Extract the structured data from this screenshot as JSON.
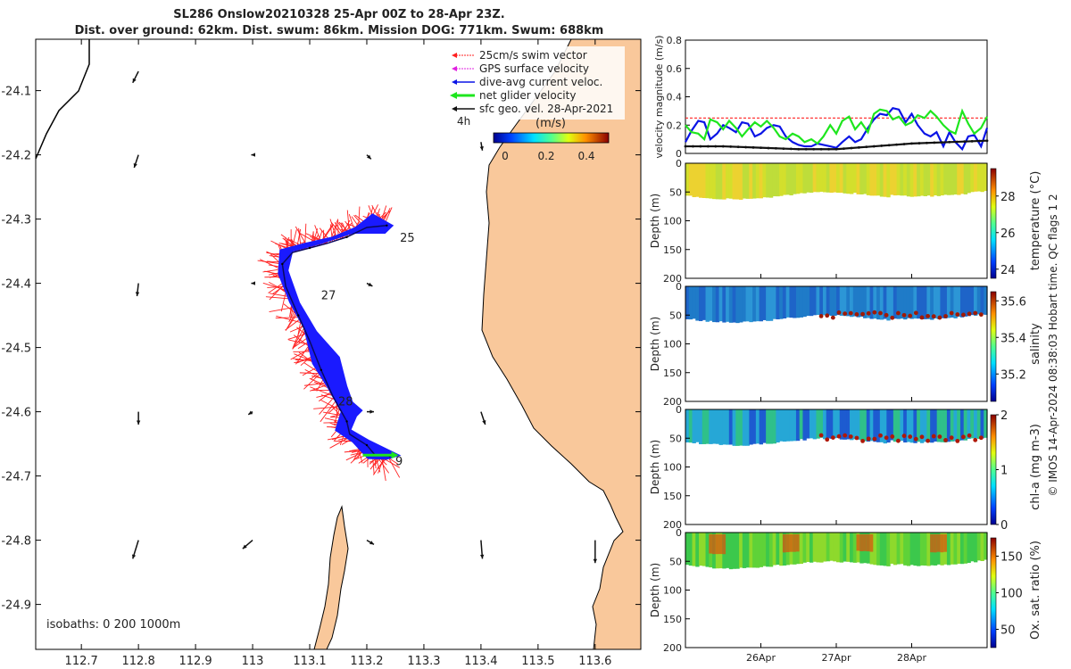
{
  "title_line1": "SL286 Onslow20210328 25-Apr 00Z to 28-Apr 23Z.",
  "title_line2": "Dist. over ground: 62km. Dist. swum: 86km. Mission DOG: 771km. Swum: 688km",
  "footer_note": "© IMOS 14-Apr-2024 08:38:03 Hobart time. QC flags 1  2",
  "colors": {
    "land": "#f9c89b",
    "swim_vector": "#ff2020",
    "gps_velocity": "#e020e0",
    "dive_avg": "#0a14e6",
    "net_velocity": "#1ee61e",
    "sfc_geo": "#111111",
    "track": "#1a1aff"
  },
  "chart_data": [
    {
      "id": "map",
      "type": "scatter",
      "xlim": [
        112.62,
        113.68
      ],
      "ylim": [
        -24.97,
        -24.02
      ],
      "x_ticks": [
        112.7,
        112.8,
        112.9,
        113,
        113.1,
        113.2,
        113.3,
        113.4,
        113.5,
        113.6
      ],
      "x_tick_labels": [
        "112.7",
        "112.8",
        "112.9",
        "113",
        "113.1",
        "113.2",
        "113.3",
        "113.4",
        "113.5",
        "113.6"
      ],
      "y_ticks": [
        -24.1,
        -24.2,
        -24.3,
        -24.4,
        -24.5,
        -24.6,
        -24.7,
        -24.8,
        -24.9
      ],
      "y_tick_labels": [
        "-24.1",
        "-24.2",
        "-24.3",
        "-24.4",
        "-24.5",
        "-24.6",
        "-24.7",
        "-24.8",
        "-24.9"
      ],
      "legend": {
        "placement": "top-right",
        "entries": [
          "25cm/s swim vector",
          "GPS surface velocity",
          "dive-avg current veloc.",
          "net glider velocity",
          "sfc geo. vel. 28-Apr-2021"
        ],
        "time_step": "4h",
        "colorbar_title": "(m/s)",
        "colorbar_range": [
          0,
          0.5
        ],
        "colorbar_ticks": [
          "0",
          "0.2",
          "0.4"
        ]
      },
      "isobaths_label": "isobaths: 0   200  1000m",
      "day_labels": [
        {
          "text": "25",
          "lon": 113.258,
          "lat": -24.335
        },
        {
          "text": "27",
          "lon": 113.12,
          "lat": -24.425
        },
        {
          "text": "28",
          "lon": 113.15,
          "lat": -24.59
        },
        {
          "text": "9",
          "lon": 113.25,
          "lat": -24.683
        }
      ],
      "glider_track": [
        [
          113.235,
          -24.31
        ],
        [
          113.2,
          -24.313
        ],
        [
          113.165,
          -24.328
        ],
        [
          113.13,
          -24.338
        ],
        [
          113.1,
          -24.345
        ],
        [
          113.07,
          -24.352
        ],
        [
          113.052,
          -24.37
        ],
        [
          113.058,
          -24.405
        ],
        [
          113.08,
          -24.45
        ],
        [
          113.1,
          -24.49
        ],
        [
          113.12,
          -24.535
        ],
        [
          113.14,
          -24.575
        ],
        [
          113.165,
          -24.615
        ],
        [
          113.17,
          -24.635
        ],
        [
          113.2,
          -24.652
        ],
        [
          113.215,
          -24.668
        ],
        [
          113.24,
          -24.669
        ]
      ],
      "current_band": {
        "outer": [
          [
            113.21,
            -24.292
          ],
          [
            113.246,
            -24.31
          ],
          [
            113.232,
            -24.322
          ],
          [
            113.175,
            -24.322
          ],
          [
            113.12,
            -24.338
          ],
          [
            113.07,
            -24.35
          ],
          [
            113.062,
            -24.38
          ],
          [
            113.082,
            -24.43
          ],
          [
            113.112,
            -24.475
          ],
          [
            113.152,
            -24.515
          ],
          [
            113.165,
            -24.56
          ],
          [
            113.175,
            -24.585
          ],
          [
            113.192,
            -24.598
          ],
          [
            113.182,
            -24.607
          ],
          [
            113.172,
            -24.628
          ],
          [
            113.205,
            -24.645
          ],
          [
            113.258,
            -24.668
          ],
          [
            113.235,
            -24.674
          ],
          [
            113.202,
            -24.673
          ]
        ],
        "inner": [
          [
            113.202,
            -24.673
          ],
          [
            113.175,
            -24.647
          ],
          [
            113.145,
            -24.629
          ],
          [
            113.155,
            -24.6
          ],
          [
            113.13,
            -24.56
          ],
          [
            113.105,
            -24.525
          ],
          [
            113.09,
            -24.47
          ],
          [
            113.065,
            -24.43
          ],
          [
            113.045,
            -24.385
          ],
          [
            113.048,
            -24.348
          ],
          [
            113.09,
            -24.338
          ],
          [
            113.14,
            -24.328
          ],
          [
            113.18,
            -24.313
          ]
        ]
      },
      "sfc_geo_arrows": [
        {
          "lon": 112.8,
          "lat": -24.07,
          "u": -0.04,
          "v": -0.08
        },
        {
          "lon": 112.8,
          "lat": -24.2,
          "u": -0.03,
          "v": -0.09
        },
        {
          "lon": 112.8,
          "lat": -24.4,
          "u": -0.01,
          "v": -0.09
        },
        {
          "lon": 112.8,
          "lat": -24.6,
          "u": 0.0,
          "v": -0.09
        },
        {
          "lon": 112.8,
          "lat": -24.8,
          "u": -0.04,
          "v": -0.13
        },
        {
          "lon": 113.0,
          "lat": -24.2,
          "u": -0.01,
          "v": 0.0
        },
        {
          "lon": 113.0,
          "lat": -24.4,
          "u": -0.01,
          "v": 0.0
        },
        {
          "lon": 113.0,
          "lat": -24.6,
          "u": -0.03,
          "v": -0.02
        },
        {
          "lon": 113.0,
          "lat": -24.8,
          "u": -0.07,
          "v": -0.06
        },
        {
          "lon": 113.2,
          "lat": -24.2,
          "u": 0.03,
          "v": -0.03
        },
        {
          "lon": 113.2,
          "lat": -24.4,
          "u": 0.04,
          "v": -0.02
        },
        {
          "lon": 113.2,
          "lat": -24.6,
          "u": 0.05,
          "v": 0.0
        },
        {
          "lon": 113.2,
          "lat": -24.8,
          "u": 0.05,
          "v": -0.03
        },
        {
          "lon": 113.4,
          "lat": -24.18,
          "u": 0.01,
          "v": -0.06
        },
        {
          "lon": 113.4,
          "lat": -24.6,
          "u": 0.03,
          "v": -0.09
        },
        {
          "lon": 113.4,
          "lat": -24.8,
          "u": 0.01,
          "v": -0.13
        },
        {
          "lon": 113.6,
          "lat": -24.8,
          "u": 0.0,
          "v": -0.16
        }
      ]
    },
    {
      "id": "velocity",
      "type": "line",
      "ylabel": "velocity magnitude (m/s)",
      "xlim": [
        25.0,
        29.0
      ],
      "ylim": [
        0,
        0.8
      ],
      "y_ticks": [
        0,
        0.2,
        0.4,
        0.6,
        0.8
      ],
      "y_tick_labels": [
        "0",
        "0.2",
        "0.4",
        "0.6",
        "0.8"
      ],
      "series": [
        {
          "name": "swim vector",
          "color": "#ff2020",
          "dashed": true,
          "x": [
            25.0,
            29.0
          ],
          "y": [
            0.25,
            0.25
          ]
        },
        {
          "name": "dive-avg current",
          "color": "#0a14e6",
          "x": [
            25.0,
            25.08,
            25.17,
            25.25,
            25.33,
            25.42,
            25.5,
            25.58,
            25.67,
            25.75,
            25.83,
            25.92,
            26.0,
            26.08,
            26.17,
            26.25,
            26.33,
            26.42,
            26.5,
            26.58,
            26.67,
            26.75,
            26.83,
            26.92,
            27.0,
            27.08,
            27.17,
            27.25,
            27.33,
            27.42,
            27.5,
            27.58,
            27.67,
            27.75,
            27.83,
            27.92,
            28.0,
            28.08,
            28.17,
            28.25,
            28.33,
            28.42,
            28.5,
            28.58,
            28.67,
            28.75,
            28.83,
            28.92,
            29.0
          ],
          "y": [
            0.08,
            0.16,
            0.23,
            0.22,
            0.1,
            0.14,
            0.2,
            0.18,
            0.15,
            0.22,
            0.21,
            0.12,
            0.14,
            0.18,
            0.2,
            0.19,
            0.12,
            0.08,
            0.06,
            0.05,
            0.05,
            0.07,
            0.06,
            0.05,
            0.04,
            0.08,
            0.12,
            0.08,
            0.1,
            0.18,
            0.24,
            0.28,
            0.27,
            0.32,
            0.31,
            0.22,
            0.28,
            0.2,
            0.14,
            0.12,
            0.15,
            0.05,
            0.15,
            0.08,
            0.03,
            0.12,
            0.13,
            0.05,
            0.18
          ]
        },
        {
          "name": "net glider velocity",
          "color": "#1ee61e",
          "x": [
            25.0,
            25.08,
            25.17,
            25.25,
            25.33,
            25.42,
            25.5,
            25.58,
            25.67,
            25.75,
            25.83,
            25.92,
            26.0,
            26.08,
            26.17,
            26.25,
            26.33,
            26.42,
            26.5,
            26.58,
            26.67,
            26.75,
            26.83,
            26.92,
            27.0,
            27.08,
            27.17,
            27.25,
            27.33,
            27.42,
            27.5,
            27.58,
            27.67,
            27.75,
            27.83,
            27.92,
            28.0,
            28.08,
            28.17,
            28.25,
            28.33,
            28.42,
            28.5,
            28.58,
            28.67,
            28.75,
            28.83,
            28.92,
            29.0
          ],
          "y": [
            0.2,
            0.15,
            0.14,
            0.1,
            0.24,
            0.22,
            0.17,
            0.23,
            0.18,
            0.12,
            0.17,
            0.22,
            0.19,
            0.23,
            0.18,
            0.12,
            0.1,
            0.14,
            0.12,
            0.08,
            0.1,
            0.07,
            0.12,
            0.2,
            0.14,
            0.23,
            0.26,
            0.17,
            0.22,
            0.15,
            0.28,
            0.31,
            0.3,
            0.24,
            0.26,
            0.2,
            0.22,
            0.27,
            0.25,
            0.3,
            0.26,
            0.2,
            0.16,
            0.14,
            0.3,
            0.21,
            0.14,
            0.18,
            0.26
          ]
        },
        {
          "name": "sfc geo. vel.",
          "color": "#111111",
          "markers": true,
          "x": [
            25.0,
            25.5,
            26.0,
            26.5,
            27.0,
            27.5,
            28.0,
            28.5,
            29.0
          ],
          "y": [
            0.05,
            0.05,
            0.04,
            0.03,
            0.03,
            0.05,
            0.07,
            0.08,
            0.09
          ]
        }
      ]
    },
    {
      "id": "temperature",
      "type": "heatmap",
      "ylabel": "Depth (m)",
      "clabel": "temperature (°C)",
      "ylim": [
        0,
        200
      ],
      "y_ticks": [
        0,
        50,
        100,
        150,
        200
      ],
      "clim": [
        23.5,
        29.5
      ],
      "c_ticks": [
        "24",
        "26",
        "28"
      ],
      "colors": [
        "#d3df2c",
        "#bedd3a",
        "#ecd230"
      ],
      "accent": null
    },
    {
      "id": "salinity",
      "type": "heatmap",
      "ylabel": "Depth (m)",
      "clabel": "salinity",
      "ylim": [
        0,
        200
      ],
      "y_ticks": [
        0,
        50,
        100,
        150,
        200
      ],
      "clim": [
        35.05,
        35.65
      ],
      "c_ticks": [
        "35.2",
        "35.4",
        "35.6"
      ],
      "colors": [
        "#1e64c8",
        "#2c96d6",
        "#1f7bc8"
      ],
      "accent": "#a01a05"
    },
    {
      "id": "chla",
      "type": "heatmap",
      "ylabel": "Depth (m)",
      "clabel": "chl-a (mg m-3)",
      "ylim": [
        0,
        200
      ],
      "y_ticks": [
        0,
        50,
        100,
        150,
        200
      ],
      "clim": [
        0,
        2
      ],
      "c_ticks": [
        "0",
        "1",
        "2"
      ],
      "colors": [
        "#1d5bd0",
        "#26a7d6",
        "#2fc08a"
      ],
      "accent": "#b01808"
    },
    {
      "id": "oxygen",
      "type": "heatmap",
      "ylabel": "Depth (m)",
      "clabel": "Ox. sat. ratio (%)",
      "ylim": [
        0,
        200
      ],
      "y_ticks": [
        0,
        50,
        100,
        150,
        200
      ],
      "clim": [
        25,
        175
      ],
      "c_ticks": [
        "50",
        "100",
        "150"
      ],
      "colors": [
        "#5fd238",
        "#8ed92c",
        "#3cc84c"
      ],
      "accent": "#d8560e"
    }
  ],
  "time_axis": {
    "xlim": [
      25.0,
      29.0
    ],
    "ticks": [
      26.0,
      27.0,
      28.0
    ],
    "tick_labels": [
      "26Apr",
      "27Apr",
      "28Apr"
    ]
  }
}
